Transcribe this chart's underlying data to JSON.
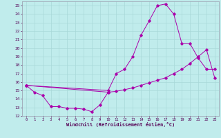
{
  "xlabel": "Windchill (Refroidissement éolien,°C)",
  "bg_color": "#c0ecec",
  "grid_color": "#a8d8d8",
  "line_color": "#aa00aa",
  "ylim": [
    12,
    25.5
  ],
  "xlim": [
    -0.5,
    23.5
  ],
  "yticks": [
    12,
    13,
    14,
    15,
    16,
    17,
    18,
    19,
    20,
    21,
    22,
    23,
    24,
    25
  ],
  "xticks": [
    0,
    1,
    2,
    3,
    4,
    5,
    6,
    7,
    8,
    9,
    10,
    11,
    12,
    13,
    14,
    15,
    16,
    17,
    18,
    19,
    20,
    21,
    22,
    23
  ],
  "series": [
    {
      "x": [
        0,
        1,
        2,
        3,
        4,
        5,
        6,
        7,
        8,
        9,
        10
      ],
      "y": [
        15.6,
        14.8,
        14.4,
        13.1,
        13.1,
        12.9,
        12.9,
        12.8,
        12.5,
        13.3,
        14.8
      ]
    },
    {
      "x": [
        0,
        10,
        11,
        12,
        13,
        14,
        15,
        16,
        17,
        18,
        19,
        20,
        21,
        22,
        23
      ],
      "y": [
        15.6,
        14.8,
        14.9,
        15.1,
        15.3,
        15.6,
        15.9,
        16.2,
        16.5,
        17.0,
        17.5,
        18.2,
        19.0,
        19.8,
        16.5
      ]
    },
    {
      "x": [
        0,
        10,
        11,
        12,
        13,
        14,
        15,
        16,
        17,
        18,
        19,
        20,
        21,
        22,
        23
      ],
      "y": [
        15.6,
        15.0,
        17.0,
        17.5,
        19.0,
        21.5,
        23.2,
        25.0,
        25.2,
        24.0,
        20.5,
        20.5,
        18.8,
        17.5,
        17.5
      ]
    }
  ]
}
